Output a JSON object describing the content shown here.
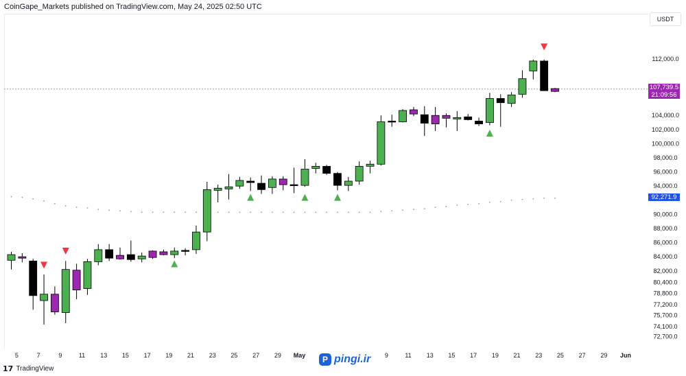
{
  "header": {
    "publisher_text": "CoinGape_Markets published on TradingView.com, May 24, 2025 02:50 UTC"
  },
  "footer": {
    "brand": "TradingView",
    "logo_glyph": "17"
  },
  "watermark": {
    "text": "pingi.ir",
    "icon_glyph": "P"
  },
  "chart_data": {
    "type": "candlestick",
    "title": "",
    "currency": "USDT",
    "colors": {
      "up": "#4caf50",
      "down": "#000000",
      "neutral": "#9c27b0",
      "signal_up": "#4caf50",
      "signal_down": "#f23645",
      "last_price": "#9c27b0",
      "support": "#1e53e5"
    },
    "ylim": [
      71200,
      118200
    ],
    "y_tick_labels": [
      "112,000.0",
      "104,000.0",
      "102,000.0",
      "100,000.0",
      "98,000.0",
      "96,000.0",
      "94,000.0",
      "90,000.0",
      "88,000.0",
      "86,000.0",
      "84,000.0",
      "82,000.0",
      "80,400.0",
      "78,800.0",
      "77,200.0",
      "75,700.0",
      "74,100.0",
      "72,700.0"
    ],
    "y_tick_values": [
      112000,
      104000,
      102000,
      100000,
      98000,
      96000,
      94000,
      90000,
      88000,
      86000,
      84000,
      82000,
      80400,
      78800,
      77200,
      75700,
      74100,
      72700
    ],
    "x_tick_labels": [
      "5",
      "7",
      "9",
      "11",
      "13",
      "15",
      "17",
      "19",
      "21",
      "23",
      "25",
      "27",
      "29",
      "May",
      "9",
      "11",
      "13",
      "15",
      "17",
      "19",
      "21",
      "23",
      "25",
      "27",
      "29",
      "Jun"
    ],
    "x_tick_positions": [
      0.5,
      2.5,
      4.5,
      6.5,
      8.5,
      10.5,
      12.5,
      14.5,
      16.5,
      18.5,
      20.5,
      22.5,
      24.5,
      26.5,
      34.5,
      36.5,
      38.5,
      40.5,
      42.5,
      44.5,
      46.5,
      48.5,
      50.5,
      52.5,
      54.5,
      56.5
    ],
    "last_price": {
      "value": 107739.5,
      "label": "107,739.5",
      "countdown": "21:09:56"
    },
    "support_level": {
      "value": 92271.9,
      "label": "92,271.9"
    },
    "candles": [
      {
        "date": "Apr 5",
        "open": 83500,
        "high": 84700,
        "low": 82200,
        "close": 84300,
        "color": "up"
      },
      {
        "date": "Apr 6",
        "open": 84000,
        "high": 84500,
        "low": 83200,
        "close": 83800,
        "color": "neutral"
      },
      {
        "date": "Apr 7",
        "open": 83400,
        "high": 83700,
        "low": 76500,
        "close": 78500,
        "color": "down"
      },
      {
        "date": "Apr 8",
        "open": 78700,
        "high": 81500,
        "low": 74400,
        "close": 77800,
        "color": "up"
      },
      {
        "date": "Apr 9",
        "open": 78700,
        "high": 79800,
        "low": 75800,
        "close": 76200,
        "color": "neutral"
      },
      {
        "date": "Apr 10",
        "open": 76100,
        "high": 83400,
        "low": 74600,
        "close": 82200,
        "color": "up"
      },
      {
        "date": "Apr 11",
        "open": 82100,
        "high": 83000,
        "low": 78000,
        "close": 79300,
        "color": "neutral"
      },
      {
        "date": "Apr 12",
        "open": 79500,
        "high": 83700,
        "low": 78600,
        "close": 83300,
        "color": "up"
      },
      {
        "date": "Apr 13",
        "open": 83300,
        "high": 85800,
        "low": 82800,
        "close": 85000,
        "color": "up"
      },
      {
        "date": "Apr 14",
        "open": 85000,
        "high": 85800,
        "low": 83400,
        "close": 83800,
        "color": "down"
      },
      {
        "date": "Apr 15",
        "open": 84200,
        "high": 85300,
        "low": 83600,
        "close": 83700,
        "color": "neutral"
      },
      {
        "date": "Apr 16",
        "open": 84300,
        "high": 86300,
        "low": 83300,
        "close": 83600,
        "color": "down"
      },
      {
        "date": "Apr 17",
        "open": 83700,
        "high": 84600,
        "low": 83200,
        "close": 84100,
        "color": "up"
      },
      {
        "date": "Apr 18",
        "open": 83900,
        "high": 84900,
        "low": 83700,
        "close": 84800,
        "color": "neutral"
      },
      {
        "date": "Apr 19",
        "open": 84700,
        "high": 85000,
        "low": 84200,
        "close": 84300,
        "color": "neutral"
      },
      {
        "date": "Apr 20",
        "open": 84300,
        "high": 85300,
        "low": 83800,
        "close": 84800,
        "color": "up"
      },
      {
        "date": "Apr 21",
        "open": 84800,
        "high": 85200,
        "low": 84200,
        "close": 84900,
        "color": "down"
      },
      {
        "date": "Apr 22",
        "open": 85000,
        "high": 88400,
        "low": 84400,
        "close": 87500,
        "color": "up"
      },
      {
        "date": "Apr 23",
        "open": 87500,
        "high": 94600,
        "low": 86200,
        "close": 93500,
        "color": "up"
      },
      {
        "date": "Apr 24",
        "open": 93400,
        "high": 94200,
        "low": 91700,
        "close": 93700,
        "color": "up"
      },
      {
        "date": "Apr 25",
        "open": 93600,
        "high": 95700,
        "low": 92100,
        "close": 93900,
        "color": "up"
      },
      {
        "date": "Apr 26",
        "open": 94000,
        "high": 95300,
        "low": 93600,
        "close": 94800,
        "color": "up"
      },
      {
        "date": "Apr 27",
        "open": 94700,
        "high": 95200,
        "low": 93300,
        "close": 94500,
        "color": "down"
      },
      {
        "date": "Apr 28",
        "open": 93500,
        "high": 95500,
        "low": 92900,
        "close": 94400,
        "color": "down"
      },
      {
        "date": "Apr 29",
        "open": 93800,
        "high": 95400,
        "low": 92900,
        "close": 95000,
        "color": "up"
      },
      {
        "date": "Apr 30",
        "open": 95000,
        "high": 95400,
        "low": 93400,
        "close": 94200,
        "color": "neutral"
      },
      {
        "date": "May 1",
        "open": 94200,
        "high": 96600,
        "low": 93000,
        "close": 94100,
        "color": "down"
      },
      {
        "date": "May 2",
        "open": 94100,
        "high": 97800,
        "low": 93900,
        "close": 96400,
        "color": "up"
      },
      {
        "date": "May 3",
        "open": 96500,
        "high": 97300,
        "low": 95800,
        "close": 96800,
        "color": "up"
      },
      {
        "date": "May 4",
        "open": 96800,
        "high": 97000,
        "low": 95600,
        "close": 95800,
        "color": "down"
      },
      {
        "date": "May 5",
        "open": 95800,
        "high": 96000,
        "low": 93400,
        "close": 94100,
        "color": "down"
      },
      {
        "date": "May 6",
        "open": 94100,
        "high": 95300,
        "low": 93300,
        "close": 94700,
        "color": "up"
      },
      {
        "date": "May 7",
        "open": 94700,
        "high": 97500,
        "low": 94200,
        "close": 96800,
        "color": "up"
      },
      {
        "date": "May 8",
        "open": 96800,
        "high": 97600,
        "low": 95800,
        "close": 97100,
        "color": "up"
      },
      {
        "date": "May 9",
        "open": 97100,
        "high": 104000,
        "low": 96900,
        "close": 103100,
        "color": "up"
      },
      {
        "date": "May 10",
        "open": 103100,
        "high": 104100,
        "low": 102400,
        "close": 103200,
        "color": "down"
      },
      {
        "date": "May 11",
        "open": 103100,
        "high": 104900,
        "low": 103000,
        "close": 104700,
        "color": "up"
      },
      {
        "date": "May 12",
        "open": 104800,
        "high": 105200,
        "low": 103900,
        "close": 104200,
        "color": "neutral"
      },
      {
        "date": "May 13",
        "open": 104100,
        "high": 105300,
        "low": 101100,
        "close": 102900,
        "color": "down"
      },
      {
        "date": "May 14",
        "open": 104000,
        "high": 105200,
        "low": 101800,
        "close": 102800,
        "color": "neutral"
      },
      {
        "date": "May 15",
        "open": 104000,
        "high": 104300,
        "low": 102300,
        "close": 103600,
        "color": "neutral"
      },
      {
        "date": "May 16",
        "open": 103500,
        "high": 104600,
        "low": 101800,
        "close": 103700,
        "color": "up"
      },
      {
        "date": "May 17",
        "open": 103800,
        "high": 104200,
        "low": 103300,
        "close": 103400,
        "color": "down"
      },
      {
        "date": "May 18",
        "open": 103200,
        "high": 103700,
        "low": 102500,
        "close": 102800,
        "color": "down"
      },
      {
        "date": "May 19",
        "open": 103000,
        "high": 107200,
        "low": 102600,
        "close": 106400,
        "color": "up"
      },
      {
        "date": "May 20",
        "open": 106400,
        "high": 107000,
        "low": 102400,
        "close": 105800,
        "color": "down"
      },
      {
        "date": "May 21",
        "open": 105700,
        "high": 107300,
        "low": 105200,
        "close": 106900,
        "color": "up"
      },
      {
        "date": "May 22",
        "open": 107000,
        "high": 110400,
        "low": 106500,
        "close": 109200,
        "color": "up"
      },
      {
        "date": "May 23",
        "open": 110300,
        "high": 111900,
        "low": 109100,
        "close": 111700,
        "color": "up"
      },
      {
        "date": "May 24",
        "open": 111700,
        "high": 111900,
        "low": 107600,
        "close": 107500,
        "color": "down"
      },
      {
        "date": "May 25",
        "open": 107800,
        "high": 107900,
        "low": 107300,
        "close": 107400,
        "color": "neutral"
      }
    ],
    "signals": [
      {
        "index": 3,
        "direction": "down",
        "value": 82800
      },
      {
        "index": 5,
        "direction": "down",
        "value": 84800
      },
      {
        "index": 15,
        "direction": "up",
        "value": 83000
      },
      {
        "index": 22,
        "direction": "up",
        "value": 92400
      },
      {
        "index": 27,
        "direction": "up",
        "value": 92400
      },
      {
        "index": 30,
        "direction": "up",
        "value": 92400
      },
      {
        "index": 44,
        "direction": "up",
        "value": 101500
      },
      {
        "index": 49,
        "direction": "down",
        "value": 113700
      }
    ],
    "trail": [
      {
        "index": 0,
        "value": 92500
      },
      {
        "index": 1,
        "value": 92400
      },
      {
        "index": 2,
        "value": 92200
      },
      {
        "index": 3,
        "value": 91900
      },
      {
        "index": 4,
        "value": 91500
      },
      {
        "index": 5,
        "value": 91200
      },
      {
        "index": 6,
        "value": 91000
      },
      {
        "index": 7,
        "value": 90900
      },
      {
        "index": 8,
        "value": 90700
      },
      {
        "index": 9,
        "value": 90600
      },
      {
        "index": 10,
        "value": 90500
      },
      {
        "index": 11,
        "value": 90400
      },
      {
        "index": 12,
        "value": 90300
      },
      {
        "index": 13,
        "value": 90300
      },
      {
        "index": 14,
        "value": 90300
      },
      {
        "index": 15,
        "value": 90300
      },
      {
        "index": 16,
        "value": 90300
      },
      {
        "index": 17,
        "value": 90300
      },
      {
        "index": 18,
        "value": 90300
      },
      {
        "index": 19,
        "value": 90300
      },
      {
        "index": 20,
        "value": 90300
      },
      {
        "index": 21,
        "value": 90300
      },
      {
        "index": 22,
        "value": 90300
      },
      {
        "index": 23,
        "value": 90300
      },
      {
        "index": 24,
        "value": 90300
      },
      {
        "index": 25,
        "value": 90300
      },
      {
        "index": 26,
        "value": 90300
      },
      {
        "index": 27,
        "value": 90300
      },
      {
        "index": 28,
        "value": 90300
      },
      {
        "index": 29,
        "value": 90300
      },
      {
        "index": 30,
        "value": 90300
      },
      {
        "index": 31,
        "value": 90300
      },
      {
        "index": 32,
        "value": 90300
      },
      {
        "index": 33,
        "value": 90300
      },
      {
        "index": 34,
        "value": 90400
      },
      {
        "index": 35,
        "value": 90500
      },
      {
        "index": 36,
        "value": 90600
      },
      {
        "index": 37,
        "value": 90700
      },
      {
        "index": 38,
        "value": 90800
      },
      {
        "index": 39,
        "value": 91000
      },
      {
        "index": 40,
        "value": 91100
      },
      {
        "index": 41,
        "value": 91300
      },
      {
        "index": 42,
        "value": 91400
      },
      {
        "index": 43,
        "value": 91500
      },
      {
        "index": 44,
        "value": 91700
      },
      {
        "index": 45,
        "value": 91800
      },
      {
        "index": 46,
        "value": 92000
      },
      {
        "index": 47,
        "value": 92100
      },
      {
        "index": 48,
        "value": 92200
      },
      {
        "index": 49,
        "value": 92300
      },
      {
        "index": 50,
        "value": 92300
      }
    ]
  }
}
